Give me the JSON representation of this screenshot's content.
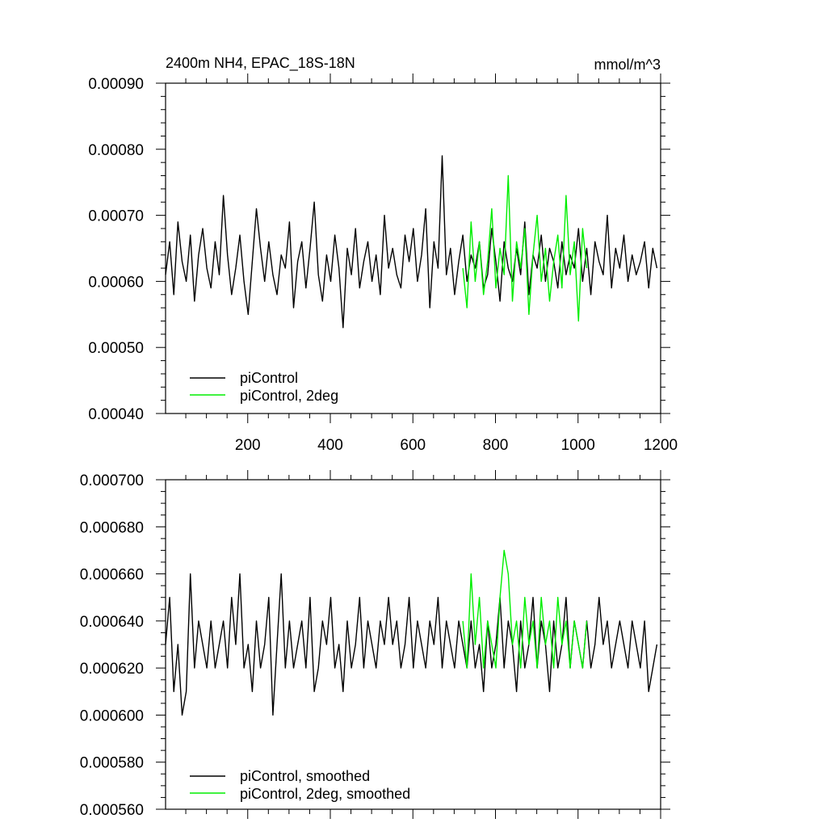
{
  "chart_data": [
    {
      "type": "line",
      "title": "2400m NH4, EPAC_18S-18N",
      "units": "mmol/m^3",
      "xlim": [
        1,
        1200
      ],
      "ylim": [
        0.0004,
        0.0009
      ],
      "x_ticks": [
        200,
        400,
        600,
        800,
        1000,
        1200
      ],
      "x_tick_labels": [
        "200",
        "400",
        "600",
        "800",
        "1000",
        "1200"
      ],
      "y_ticks": [
        0.0004,
        0.0005,
        0.0006,
        0.0007,
        0.0008,
        0.0009
      ],
      "y_tick_labels": [
        "0.00040",
        "0.00050",
        "0.00060",
        "0.00070",
        "0.00080",
        "0.00090"
      ],
      "legend": "bottom-left",
      "series": [
        {
          "name": "piControl",
          "color": "#000000",
          "x_start": 1,
          "x_step": 10,
          "values": [
            0.00061,
            0.00066,
            0.00058,
            0.00069,
            0.00063,
            0.0006,
            0.00067,
            0.00057,
            0.00064,
            0.00068,
            0.00062,
            0.00059,
            0.00066,
            0.00061,
            0.00073,
            0.00064,
            0.00058,
            0.00062,
            0.00067,
            0.0006,
            0.00055,
            0.00063,
            0.00071,
            0.00065,
            0.0006,
            0.00066,
            0.00061,
            0.00058,
            0.00064,
            0.00062,
            0.00069,
            0.00056,
            0.00063,
            0.00066,
            0.00059,
            0.00065,
            0.00072,
            0.00061,
            0.00057,
            0.00064,
            0.0006,
            0.00067,
            0.00062,
            0.00053,
            0.00065,
            0.00061,
            0.00068,
            0.00059,
            0.00063,
            0.00066,
            0.0006,
            0.00064,
            0.00058,
            0.0007,
            0.00062,
            0.00065,
            0.00061,
            0.00059,
            0.00067,
            0.00063,
            0.00068,
            0.0006,
            0.00064,
            0.00071,
            0.00056,
            0.00066,
            0.00062,
            0.00079,
            0.00061,
            0.00065,
            0.00058,
            0.00063,
            0.00067,
            0.0006,
            0.00064,
            0.00062,
            0.00066,
            0.00059,
            0.00061,
            0.00068,
            0.00063,
            0.00057,
            0.00066,
            0.00062,
            0.0006,
            0.00065,
            0.00061,
            0.00069,
            0.00058,
            0.00064,
            0.00062,
            0.00067,
            0.0006,
            0.00065,
            0.00063,
            0.00059,
            0.00066,
            0.00061,
            0.00064,
            0.00062,
            0.00068,
            0.0006,
            0.00065,
            0.00058,
            0.00066,
            0.00063,
            0.00061,
            0.0007,
            0.00059,
            0.00065,
            0.00062,
            0.00067,
            0.0006,
            0.00064,
            0.00061,
            0.00063,
            0.00066,
            0.00059,
            0.00065,
            0.00062
          ]
        },
        {
          "name": "piControl, 2deg",
          "color": "#00ee00",
          "x_start": 721,
          "x_step": 10,
          "values": [
            0.00062,
            0.00056,
            0.00069,
            0.0006,
            0.00066,
            0.00058,
            0.00063,
            0.00071,
            0.00059,
            0.00065,
            0.00061,
            0.00076,
            0.00057,
            0.00066,
            0.00062,
            0.00068,
            0.00055,
            0.00064,
            0.0007,
            0.0006,
            0.00065,
            0.00057,
            0.00063,
            0.00067,
            0.00059,
            0.00073,
            0.00061,
            0.00066,
            0.00054,
            0.00068,
            0.00062
          ]
        }
      ]
    },
    {
      "type": "line",
      "xlim": [
        1,
        1200
      ],
      "ylim": [
        0.00056,
        0.0007
      ],
      "x_ticks": [
        200,
        400,
        600,
        800,
        1000,
        1200
      ],
      "y_ticks": [
        0.00056,
        0.00058,
        0.0006,
        0.00062,
        0.00064,
        0.00066,
        0.00068,
        0.0007
      ],
      "y_tick_labels": [
        "0.000560",
        "0.000580",
        "0.000600",
        "0.000620",
        "0.000640",
        "0.000660",
        "0.000680",
        "0.000700"
      ],
      "legend": "bottom-left",
      "series": [
        {
          "name": "piControl, smoothed",
          "color": "#000000",
          "x_start": 1,
          "x_step": 10,
          "values": [
            0.00063,
            0.00065,
            0.00061,
            0.00063,
            0.0006,
            0.00061,
            0.00066,
            0.00062,
            0.00064,
            0.00063,
            0.00062,
            0.00064,
            0.00062,
            0.00063,
            0.00064,
            0.00062,
            0.00065,
            0.00063,
            0.00066,
            0.00062,
            0.00063,
            0.00061,
            0.00064,
            0.00062,
            0.00063,
            0.00065,
            0.0006,
            0.00063,
            0.00066,
            0.00062,
            0.00064,
            0.00062,
            0.00063,
            0.00064,
            0.00062,
            0.00065,
            0.00061,
            0.00062,
            0.00064,
            0.00063,
            0.00065,
            0.00062,
            0.00063,
            0.00061,
            0.00064,
            0.00062,
            0.00063,
            0.00065,
            0.00062,
            0.00064,
            0.00063,
            0.00062,
            0.00064,
            0.00063,
            0.00065,
            0.00063,
            0.00064,
            0.00062,
            0.00063,
            0.00065,
            0.00062,
            0.00064,
            0.00063,
            0.00062,
            0.00064,
            0.00063,
            0.00065,
            0.00062,
            0.00064,
            0.00063,
            0.00062,
            0.00064,
            0.00063,
            0.00062,
            0.00064,
            0.00062,
            0.00063,
            0.00061,
            0.00064,
            0.00062,
            0.00063,
            0.00065,
            0.00062,
            0.00064,
            0.00063,
            0.00061,
            0.00064,
            0.00062,
            0.00063,
            0.00065,
            0.00062,
            0.00064,
            0.00063,
            0.00061,
            0.00064,
            0.00062,
            0.00063,
            0.00065,
            0.00062,
            0.00064,
            0.00063,
            0.00062,
            0.00064,
            0.00062,
            0.00063,
            0.00065,
            0.00063,
            0.00064,
            0.00062,
            0.00063,
            0.00064,
            0.00063,
            0.00062,
            0.00064,
            0.00063,
            0.00062,
            0.00064,
            0.00061,
            0.00062,
            0.00063
          ]
        },
        {
          "name": "piControl, 2deg, smoothed",
          "color": "#00ee00",
          "x_start": 721,
          "x_step": 10,
          "values": [
            0.00064,
            0.00062,
            0.00066,
            0.00063,
            0.00065,
            0.00062,
            0.00064,
            0.00063,
            0.00062,
            0.00065,
            0.00067,
            0.00066,
            0.00063,
            0.00064,
            0.00062,
            0.00065,
            0.00063,
            0.00064,
            0.00062,
            0.00065,
            0.00063,
            0.00064,
            0.00062,
            0.00065,
            0.00063,
            0.00064,
            0.00062,
            0.00064,
            0.00063,
            0.00062,
            0.00064
          ]
        }
      ]
    }
  ]
}
